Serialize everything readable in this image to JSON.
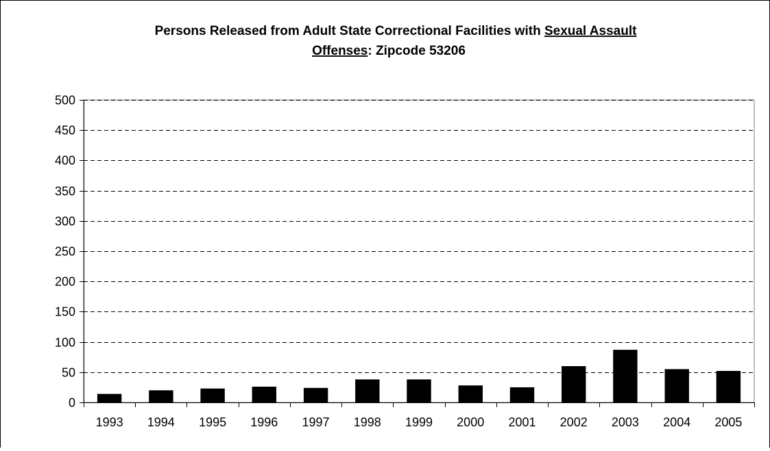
{
  "chart_data": {
    "type": "bar",
    "title_line1_prefix": "Persons Released from Adult State Correctional Facilities with ",
    "title_line1_underlined": "Sexual Assault",
    "title_line2_underlined": "Offenses",
    "title_line2_suffix": ": Zipcode 53206",
    "title": "Persons Released from Adult State Correctional Facilities with Sexual Assault Offenses: Zipcode 53206",
    "categories": [
      "1993",
      "1994",
      "1995",
      "1996",
      "1997",
      "1998",
      "1999",
      "2000",
      "2001",
      "2002",
      "2003",
      "2004",
      "2005"
    ],
    "values": [
      14,
      20,
      23,
      26,
      24,
      38,
      38,
      28,
      25,
      60,
      87,
      55,
      52
    ],
    "ylim": [
      0,
      500
    ],
    "yticks": [
      "0",
      "50",
      "100",
      "150",
      "200",
      "250",
      "300",
      "350",
      "400",
      "450",
      "500"
    ],
    "grid": true,
    "legend": "none",
    "colors": {
      "bar": "#000000",
      "grid": "#000000",
      "frame": "#000000"
    }
  }
}
